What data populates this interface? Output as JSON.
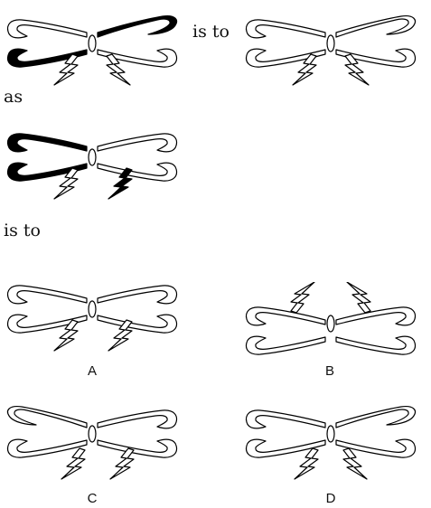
{
  "colors": {
    "outline": "#000000",
    "fill": "#ffffff",
    "shaded": "#000000"
  },
  "text": {
    "is_to_1": "is to",
    "as": "as",
    "is_to_2": "is to"
  },
  "figures": {
    "fig1": {
      "filled": [
        "upper-right",
        "lower-left"
      ]
    },
    "fig2": {
      "filled": []
    },
    "fig3": {
      "filled": [
        "upper-left",
        "lower-left",
        "right-lightning"
      ]
    }
  },
  "options": [
    {
      "label": "A"
    },
    {
      "label": "B"
    },
    {
      "label": "C"
    },
    {
      "label": "D"
    }
  ]
}
